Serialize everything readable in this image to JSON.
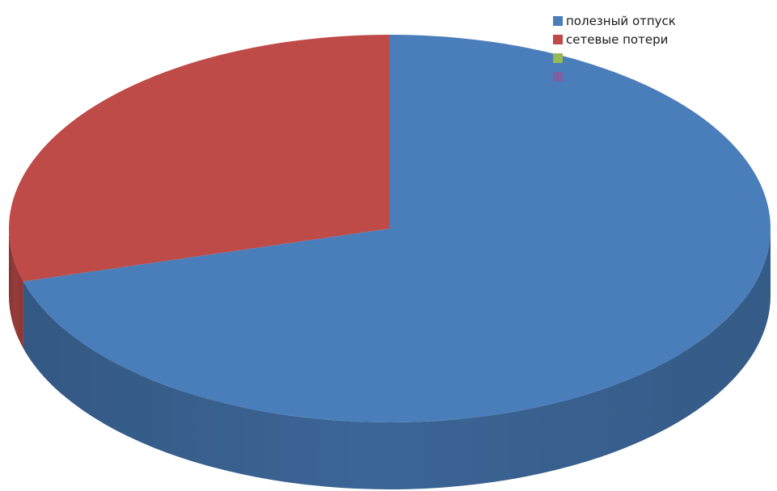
{
  "chart_data": {
    "type": "pie",
    "style": "3d",
    "slices": [
      {
        "name": "полезный отпуск",
        "value": 70.6,
        "color": "#4a7ebb"
      },
      {
        "name": "сетевые потери",
        "value": 29.4,
        "color": "#be4b48"
      },
      {
        "name": "",
        "value": 0,
        "color": "#98b954"
      },
      {
        "name": "",
        "value": 0,
        "color": "#7d60a0"
      }
    ],
    "legend": {
      "placement": "top-right"
    }
  }
}
